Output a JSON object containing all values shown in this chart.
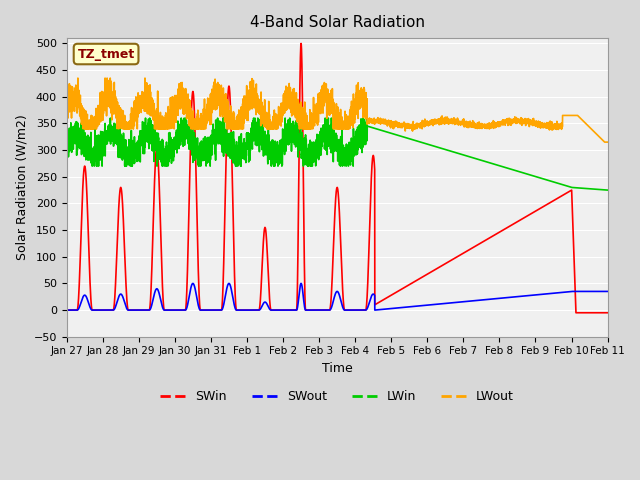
{
  "title": "4-Band Solar Radiation",
  "xlabel": "Time",
  "ylabel": "Solar Radiation (W/m2)",
  "ylim": [
    -50,
    510
  ],
  "yticks": [
    -50,
    0,
    50,
    100,
    150,
    200,
    250,
    300,
    350,
    400,
    450,
    500
  ],
  "annotation_label": "TZ_tmet",
  "annotation_color": "#8B0000",
  "annotation_box_color": "#FFFFCC",
  "annotation_border_color": "#8B6914",
  "colors": {
    "SWin": "#FF0000",
    "SWout": "#0000FF",
    "LWin": "#00CC00",
    "LWout": "#FFA500"
  },
  "tick_positions": [
    0,
    24,
    48,
    72,
    96,
    120,
    144,
    168,
    192,
    216,
    240,
    264,
    288,
    312,
    336,
    360
  ],
  "tick_labels": [
    "Jan 27",
    "Jan 28",
    "Jan 29",
    "Jan 30",
    "Jan 31",
    "Feb 1",
    "Feb 2",
    "Feb 3",
    "Feb 4",
    "Feb 5",
    "Feb 6",
    "Feb 7",
    "Feb 8",
    "Feb 9",
    "Feb 10",
    "Feb 11"
  ],
  "xlim": [
    0,
    360
  ],
  "fig_facecolor": "#D8D8D8",
  "ax_facecolor": "#F0F0F0",
  "grid_color": "#FFFFFF"
}
